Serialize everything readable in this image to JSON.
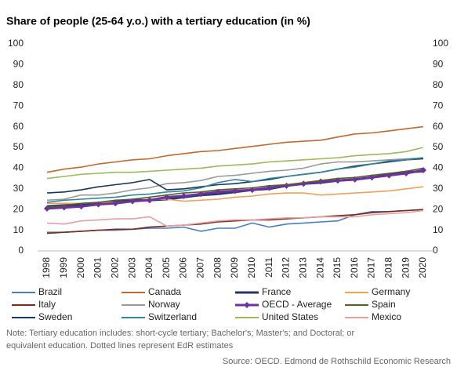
{
  "chart_data": {
    "type": "line",
    "title": "Share of people (25-64 y.o.) with a tertiary education (in %)",
    "categories": [
      "1998",
      "1999",
      "2000",
      "2001",
      "2002",
      "2003",
      "2004",
      "2005",
      "2006",
      "2007",
      "2008",
      "2009",
      "2010",
      "2011",
      "2012",
      "2013",
      "2014",
      "2015",
      "2016",
      "2017",
      "2018",
      "2019",
      "2020"
    ],
    "ylim": [
      0,
      100
    ],
    "yticks": [
      0,
      10,
      20,
      30,
      40,
      50,
      60,
      70,
      80,
      90,
      100
    ],
    "y2lim": [
      0,
      100
    ],
    "y2ticks": [
      0,
      10,
      20,
      30,
      40,
      50,
      60,
      70,
      80,
      90,
      100
    ],
    "grid": false,
    "series": [
      {
        "name": "Brazil",
        "color": "#4a7ebb",
        "values": [
          9,
          9,
          9.5,
          10,
          10,
          10.5,
          11,
          11,
          11.5,
          9.5,
          11,
          11,
          13.5,
          11.5,
          13,
          13.5,
          14,
          14.5,
          17.5,
          19,
          19,
          19.5,
          20
        ]
      },
      {
        "name": "Canada",
        "color": "#c0692e",
        "values": [
          38,
          39.5,
          40.5,
          42,
          43,
          44,
          44.5,
          46,
          47,
          48,
          48.5,
          49.5,
          50.5,
          51.5,
          52.5,
          53,
          53.5,
          55,
          56.5,
          57,
          58,
          59,
          60
        ]
      },
      {
        "name": "France",
        "color": "#1f3864",
        "line_width": 3,
        "values": [
          21.5,
          22,
          22.5,
          23,
          24,
          24.5,
          24.5,
          25,
          26,
          27,
          27.5,
          28.5,
          29.5,
          30,
          31.5,
          32.5,
          33,
          34,
          34.5,
          35.5,
          37,
          38,
          38.5
        ]
      },
      {
        "name": "Germany",
        "color": "#f0a05a",
        "values": [
          23,
          23,
          23,
          23.5,
          23.5,
          24,
          25,
          25,
          24,
          24.5,
          25,
          26,
          26.5,
          27.5,
          28,
          28,
          27,
          27.5,
          28,
          28.5,
          29,
          30,
          31
        ]
      },
      {
        "name": "Italy",
        "color": "#7b2a1e",
        "values": [
          8.5,
          9,
          9.5,
          10,
          10.5,
          10.5,
          11.5,
          12,
          12.5,
          13,
          14,
          14.5,
          15,
          15,
          15.5,
          16,
          16.5,
          17,
          17.5,
          18.5,
          19,
          19.5,
          20
        ]
      },
      {
        "name": "Norway",
        "color": "#999999",
        "values": [
          24.5,
          25,
          27,
          27,
          28,
          29.5,
          30.5,
          32.5,
          33,
          34,
          36,
          36.5,
          37.5,
          38.5,
          39,
          40,
          42,
          43,
          43,
          43.5,
          44,
          44.5,
          45
        ]
      },
      {
        "name": "OECD - Average",
        "color": "#7030a0",
        "line_width": 3,
        "marker": "diamond",
        "values": [
          20.5,
          21,
          21.5,
          22.5,
          23,
          24,
          24.5,
          26,
          26.5,
          27.5,
          28.5,
          29,
          29.5,
          30.5,
          31.5,
          32.5,
          33.5,
          34,
          34.5,
          35.5,
          36.5,
          37.5,
          39
        ]
      },
      {
        "name": "Spain",
        "color": "#4f6228",
        "values": [
          21,
          22,
          23,
          23.5,
          24.5,
          25,
          26,
          27,
          28,
          28.5,
          29.5,
          30,
          30.5,
          31.5,
          32,
          33,
          34,
          35,
          35.5,
          36.5,
          37.5,
          38.5,
          40
        ]
      },
      {
        "name": "Sweden",
        "color": "#17375e",
        "values": [
          28,
          28.5,
          29.5,
          31,
          32,
          33,
          34.5,
          29.5,
          30,
          31,
          32,
          32.5,
          33.5,
          34.5,
          36,
          37,
          38,
          39.5,
          41,
          42,
          43,
          44,
          44.5
        ]
      },
      {
        "name": "Switzerland",
        "color": "#31859c",
        "values": [
          23.5,
          24.5,
          25,
          25.5,
          26,
          27,
          27.5,
          28.5,
          29,
          30.5,
          33,
          34.5,
          33.5,
          35,
          36,
          37,
          38,
          39.5,
          40.5,
          42,
          43.5,
          44,
          45
        ]
      },
      {
        "name": "United States",
        "color": "#9bbb59",
        "values": [
          35,
          36,
          37,
          37.5,
          38,
          38,
          38.5,
          39,
          39.5,
          40,
          41,
          41.5,
          42,
          43,
          43.5,
          44,
          44.5,
          45,
          46,
          46.5,
          47,
          48,
          50
        ]
      },
      {
        "name": "Mexico",
        "color": "#e6a0a0",
        "values": [
          13.5,
          13,
          14.5,
          15,
          15.5,
          15.5,
          16.5,
          12,
          12.5,
          13.5,
          14.5,
          15,
          15,
          15.5,
          16,
          16,
          16.5,
          16.5,
          16.5,
          17.5,
          18,
          18.5,
          19.5
        ]
      }
    ],
    "note": [
      "Note: Tertiary education includes: short-cycle tertiary; Bachelor's; Master's; and Doctoral; or",
      "equivalent education. Dotted lines represent EdR estimates"
    ],
    "source": "Source: OECD. Edmond de Rothschild Economic Research"
  }
}
